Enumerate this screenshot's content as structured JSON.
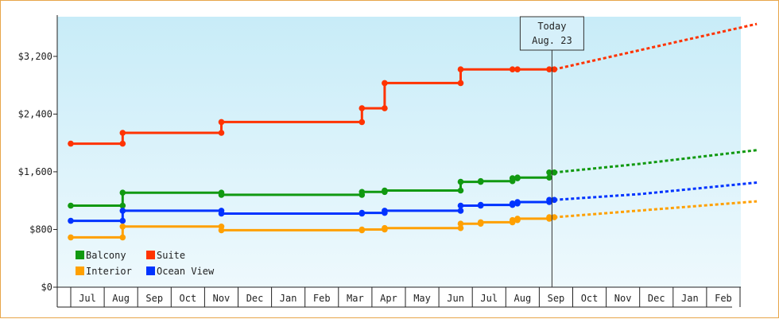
{
  "chart_data": {
    "type": "line",
    "title": "",
    "xlabel": "",
    "ylabel": "",
    "y_ticks": [
      "$0",
      "$800",
      "$1,600",
      "$2,400",
      "$3,200"
    ],
    "y_tick_values": [
      0,
      800,
      1600,
      2400,
      3200
    ],
    "ylim": [
      0,
      3750
    ],
    "x_ticks": [
      "Jul",
      "Aug",
      "Sep",
      "Oct",
      "Nov",
      "Dec",
      "Jan",
      "Feb",
      "Mar",
      "Apr",
      "May",
      "Jun",
      "Jul",
      "Aug",
      "Sep",
      "Oct",
      "Nov",
      "Dec",
      "Jan",
      "Feb"
    ],
    "xlim": [
      -0.5,
      20
    ],
    "today": {
      "line1": "Today",
      "line2": "Aug. 23",
      "x": 13.88
    },
    "legend": [
      {
        "name": "Balcony",
        "color": "#119911"
      },
      {
        "name": "Suite",
        "color": "#ff3300"
      },
      {
        "name": "Interior",
        "color": "#ffa000"
      },
      {
        "name": "Ocean View",
        "color": "#0033ff"
      }
    ],
    "series": [
      {
        "name": "Suite",
        "color": "#ff3300",
        "points": [
          [
            -0.5,
            1990
          ],
          [
            1.05,
            1990
          ],
          [
            1.05,
            2140
          ],
          [
            4.0,
            2140
          ],
          [
            4.0,
            2290
          ],
          [
            8.2,
            2290
          ],
          [
            8.2,
            2480
          ],
          [
            8.88,
            2480
          ],
          [
            8.88,
            2830
          ],
          [
            11.15,
            2830
          ],
          [
            11.15,
            3020
          ],
          [
            12.7,
            3020
          ],
          [
            12.85,
            3020
          ],
          [
            13.8,
            3020
          ],
          [
            13.95,
            3020
          ]
        ],
        "projection": [
          [
            13.95,
            3020
          ],
          [
            20,
            3650
          ]
        ]
      },
      {
        "name": "Balcony",
        "color": "#119911",
        "points": [
          [
            -0.5,
            1130
          ],
          [
            1.05,
            1130
          ],
          [
            1.05,
            1310
          ],
          [
            4.0,
            1310
          ],
          [
            4.0,
            1280
          ],
          [
            8.2,
            1280
          ],
          [
            8.2,
            1320
          ],
          [
            8.88,
            1320
          ],
          [
            8.88,
            1340
          ],
          [
            11.15,
            1340
          ],
          [
            11.15,
            1460
          ],
          [
            11.75,
            1460
          ],
          [
            11.75,
            1470
          ],
          [
            12.7,
            1470
          ],
          [
            12.7,
            1510
          ],
          [
            12.85,
            1510
          ],
          [
            12.85,
            1520
          ],
          [
            13.8,
            1520
          ],
          [
            13.8,
            1590
          ],
          [
            13.95,
            1590
          ]
        ],
        "projection": [
          [
            13.95,
            1590
          ],
          [
            16.5,
            1710
          ],
          [
            20,
            1900
          ]
        ]
      },
      {
        "name": "Ocean View",
        "color": "#0033ff",
        "points": [
          [
            -0.5,
            920
          ],
          [
            1.05,
            920
          ],
          [
            1.05,
            1060
          ],
          [
            4.0,
            1060
          ],
          [
            4.0,
            1020
          ],
          [
            8.2,
            1020
          ],
          [
            8.2,
            1030
          ],
          [
            8.88,
            1030
          ],
          [
            8.88,
            1060
          ],
          [
            11.15,
            1060
          ],
          [
            11.15,
            1130
          ],
          [
            11.75,
            1130
          ],
          [
            11.75,
            1140
          ],
          [
            12.7,
            1140
          ],
          [
            12.7,
            1160
          ],
          [
            12.85,
            1160
          ],
          [
            12.85,
            1180
          ],
          [
            13.8,
            1180
          ],
          [
            13.8,
            1210
          ],
          [
            13.95,
            1210
          ]
        ],
        "projection": [
          [
            13.95,
            1210
          ],
          [
            16.5,
            1290
          ],
          [
            20,
            1450
          ]
        ]
      },
      {
        "name": "Interior",
        "color": "#ffa000",
        "points": [
          [
            -0.5,
            690
          ],
          [
            1.05,
            690
          ],
          [
            1.05,
            840
          ],
          [
            4.0,
            840
          ],
          [
            4.0,
            790
          ],
          [
            8.2,
            790
          ],
          [
            8.2,
            800
          ],
          [
            8.88,
            800
          ],
          [
            8.88,
            820
          ],
          [
            11.15,
            820
          ],
          [
            11.15,
            880
          ],
          [
            11.75,
            880
          ],
          [
            11.75,
            900
          ],
          [
            12.7,
            900
          ],
          [
            12.7,
            930
          ],
          [
            12.85,
            930
          ],
          [
            12.85,
            950
          ],
          [
            13.8,
            950
          ],
          [
            13.8,
            970
          ],
          [
            13.95,
            970
          ]
        ],
        "projection": [
          [
            13.95,
            970
          ],
          [
            20,
            1190
          ]
        ]
      }
    ],
    "grid": false,
    "legend_position": "bottom-left"
  }
}
